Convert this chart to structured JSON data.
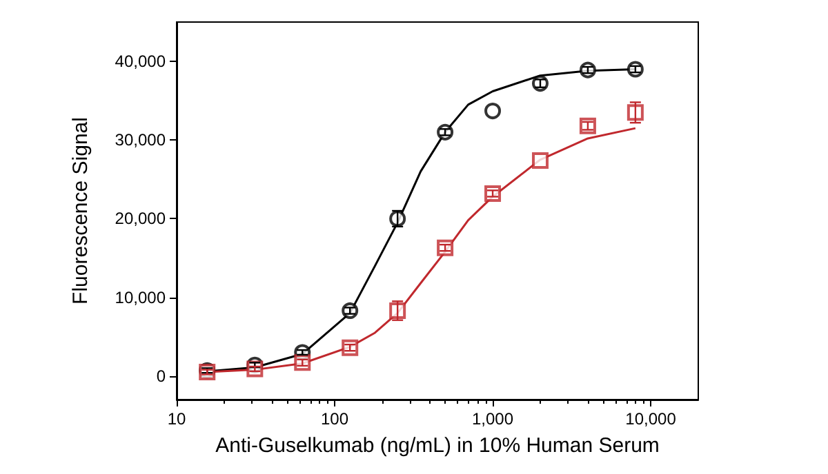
{
  "chart_data": {
    "type": "scatter",
    "xlabel": "Anti-Guselkumab (ng/mL) in 10% Human Serum",
    "ylabel": "Fluorescence Signal",
    "log": "x",
    "xlim": [
      10,
      20000
    ],
    "xticks": [
      10,
      100,
      {
        "value": 1000,
        "label": "1,000"
      },
      {
        "value": 10000,
        "label": "10,000"
      }
    ],
    "ylim": [
      -3000,
      45000
    ],
    "yticks": [
      0,
      {
        "value": 10000,
        "label": "10,000"
      },
      {
        "value": 20000,
        "label": "20,000"
      },
      {
        "value": 30000,
        "label": "30,000"
      },
      {
        "value": 40000,
        "label": "40,000"
      }
    ],
    "grid": false,
    "series": [
      {
        "type": "line",
        "color": "#000000",
        "marker": "none",
        "line_style": "solid",
        "x": [
          15.6,
          31.25,
          62.5,
          125,
          180,
          250,
          350,
          500,
          700,
          1000,
          2000,
          4000,
          8000
        ],
        "values": [
          600,
          1100,
          2800,
          8000,
          14000,
          19500,
          26000,
          31000,
          34500,
          36200,
          38200,
          38800,
          39000
        ]
      },
      {
        "type": "line",
        "color": "#c0282d",
        "marker": "none",
        "line_style": "solid",
        "x": [
          15.6,
          31.25,
          62.5,
          125,
          180,
          250,
          350,
          500,
          700,
          1000,
          2000,
          4000,
          8000
        ],
        "values": [
          500,
          800,
          1600,
          3700,
          5500,
          8000,
          11800,
          15800,
          19800,
          22800,
          27500,
          30200,
          31500
        ]
      },
      {
        "color": "#000000",
        "marker": "circle",
        "x": [
          15.6,
          31.25,
          62.5,
          125,
          250,
          500,
          1000,
          2000,
          4000,
          8000
        ],
        "values": [
          700,
          1400,
          3000,
          8300,
          20000,
          31000,
          33700,
          37200,
          38900,
          39000
        ],
        "errors": [
          300,
          300,
          300,
          400,
          1000,
          400,
          null,
          500,
          400,
          400
        ]
      },
      {
        "color": "#c0282d",
        "marker": "square",
        "x": [
          15.6,
          31.25,
          62.5,
          125,
          250,
          500,
          1000,
          2000,
          4000,
          8000
        ],
        "values": [
          500,
          900,
          1700,
          3600,
          8300,
          16300,
          23200,
          27400,
          31800,
          33500
        ],
        "errors": [
          300,
          300,
          400,
          400,
          1200,
          400,
          400,
          null,
          500,
          1300
        ]
      }
    ]
  }
}
